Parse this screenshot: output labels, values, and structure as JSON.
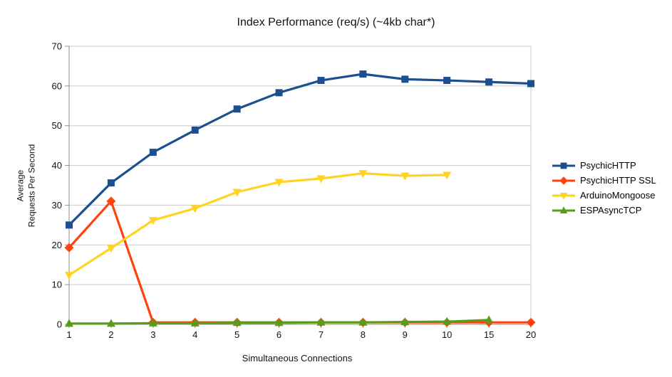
{
  "chart_data": {
    "type": "line",
    "title": "Index Performance (req/s) (~4kb char*)",
    "xlabel": "Simultaneous Connections",
    "ylabel": "Average Requests Per Second",
    "ylabel_lines": [
      "Average",
      "Requests Per Second"
    ],
    "categories": [
      "1",
      "2",
      "3",
      "4",
      "5",
      "6",
      "7",
      "8",
      "9",
      "10",
      "15",
      "20"
    ],
    "yticks": [
      0,
      10,
      20,
      30,
      40,
      50,
      60,
      70
    ],
    "ylim": [
      0,
      70
    ],
    "grid": "horizontal",
    "legend_position": "right",
    "colors": {
      "grid": "#c9c9c9",
      "axis": "#8f8f8f",
      "background": "#ffffff"
    },
    "series": [
      {
        "name": "PsychicHTTP",
        "color": "#1B4F8F",
        "marker": "square",
        "values": [
          25.0,
          35.6,
          43.3,
          48.9,
          54.2,
          58.3,
          61.4,
          63.0,
          61.7,
          61.4,
          61.0,
          60.6
        ]
      },
      {
        "name": "PsychicHTTP SSL",
        "color": "#FF420E",
        "marker": "diamond",
        "values": [
          19.3,
          31.0,
          0.5,
          0.5,
          0.5,
          0.5,
          0.5,
          0.5,
          0.5,
          0.5,
          0.5,
          0.5
        ]
      },
      {
        "name": "ArduinoMongoose",
        "color": "#FFD320",
        "marker": "triangle-down",
        "values": [
          12.4,
          19.2,
          26.2,
          29.2,
          33.3,
          35.8,
          36.7,
          38.0,
          37.4,
          37.6,
          null,
          null
        ]
      },
      {
        "name": "ESPAsyncTCP",
        "color": "#579D1C",
        "marker": "triangle-up",
        "values": [
          0.2,
          0.2,
          0.3,
          0.3,
          0.4,
          0.4,
          0.5,
          0.5,
          0.6,
          0.7,
          1.1,
          null
        ]
      }
    ]
  }
}
